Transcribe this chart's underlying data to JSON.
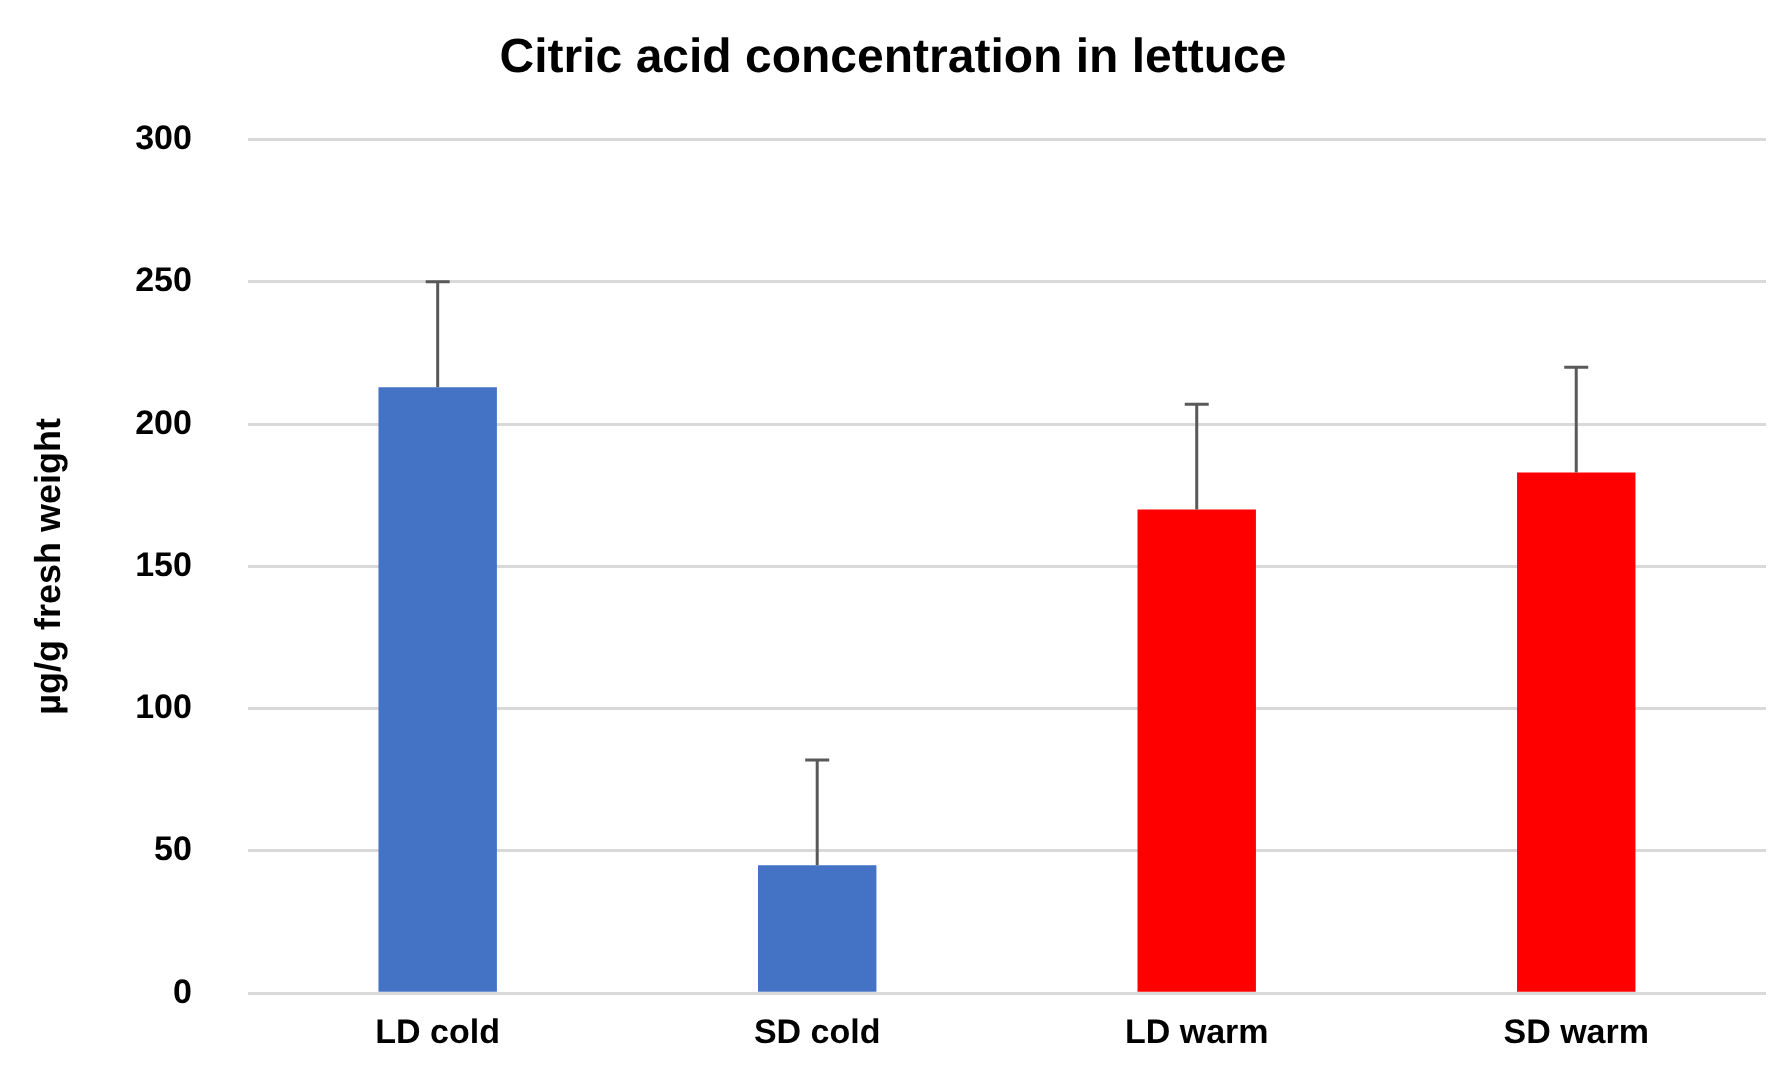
{
  "chart_data": {
    "type": "bar",
    "title": "Citric acid concentration in lettuce",
    "ylabel": "µg/g fresh weight",
    "categories": [
      "LD cold",
      "SD cold",
      "LD warm",
      "SD warm"
    ],
    "values": [
      213,
      45,
      170,
      183
    ],
    "colors": [
      "#4472c4",
      "#4472c4",
      "#ff0000",
      "#ff0000"
    ],
    "errors": [
      [
        213,
        250
      ],
      [
        45,
        82
      ],
      [
        170,
        207
      ],
      [
        183,
        220
      ]
    ],
    "ylim": [
      0,
      300
    ],
    "yticks": [
      0,
      50,
      100,
      150,
      200,
      250,
      300
    ],
    "grid": "y",
    "legend": false
  }
}
